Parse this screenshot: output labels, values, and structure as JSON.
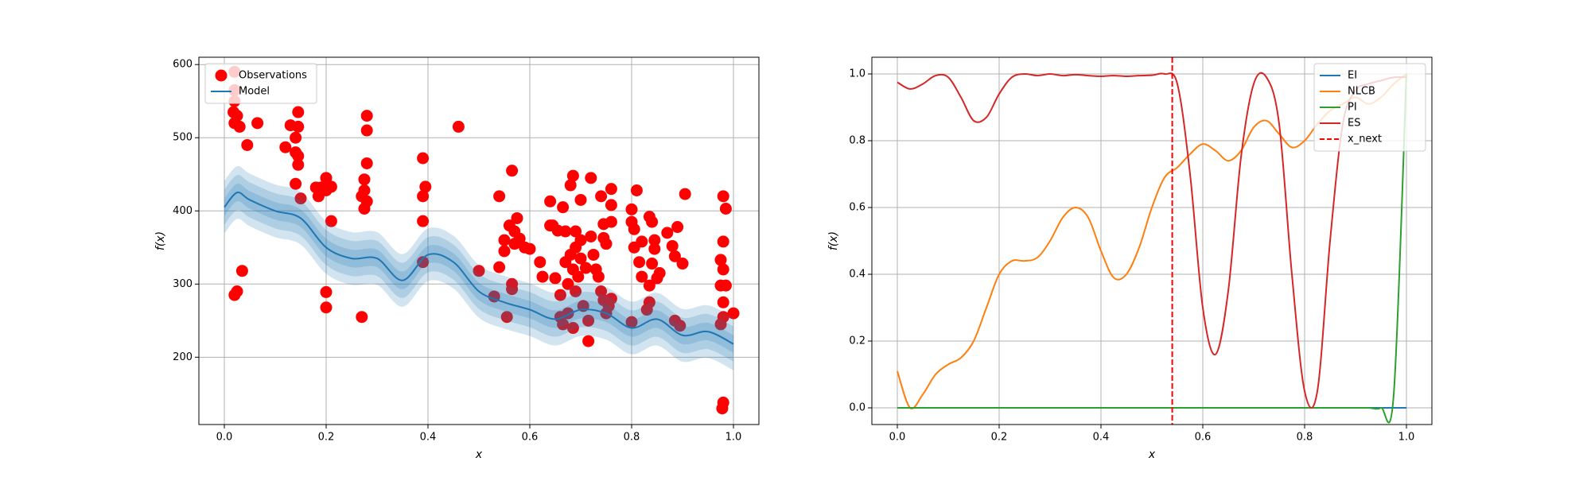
{
  "chart_data": [
    {
      "type": "scatter",
      "xlabel": "x",
      "ylabel": "f(x)",
      "xlim": [
        -0.05,
        1.05
      ],
      "ylim": [
        108,
        610
      ],
      "xticks": [
        {
          "value": 0,
          "label": "0.0"
        },
        0.2,
        0.4,
        0.6,
        0.8,
        {
          "value": 1,
          "label": "1.0"
        }
      ],
      "yticks": [
        200,
        300,
        400,
        500,
        600
      ],
      "grid": true,
      "legend": "upper left",
      "series": [
        {
          "name": "Observations",
          "type": "scatter",
          "color": "#ff0000",
          "x": [
            0.02,
            0.02,
            0.02,
            0.018,
            0.02,
            0.03,
            0.025,
            0.02,
            0.025,
            0.035,
            0.045,
            0.065,
            0.12,
            0.13,
            0.14,
            0.14,
            0.145,
            0.145,
            0.145,
            0.145,
            0.14,
            0.15,
            0.18,
            0.185,
            0.19,
            0.2,
            0.2,
            0.21,
            0.21,
            0.2,
            0.2,
            0.27,
            0.27,
            0.275,
            0.275,
            0.28,
            0.275,
            0.28,
            0.28,
            0.28,
            0.39,
            0.395,
            0.39,
            0.39,
            0.39,
            0.46,
            0.5,
            0.53,
            0.54,
            0.54,
            0.55,
            0.55,
            0.555,
            0.56,
            0.565,
            0.565,
            0.565,
            0.57,
            0.57,
            0.575,
            0.58,
            0.59,
            0.6,
            0.62,
            0.625,
            0.64,
            0.64,
            0.645,
            0.65,
            0.655,
            0.66,
            0.66,
            0.665,
            0.665,
            0.67,
            0.67,
            0.675,
            0.675,
            0.68,
            0.68,
            0.685,
            0.685,
            0.685,
            0.69,
            0.69,
            0.69,
            0.695,
            0.7,
            0.7,
            0.7,
            0.705,
            0.71,
            0.715,
            0.715,
            0.72,
            0.72,
            0.725,
            0.73,
            0.735,
            0.74,
            0.74,
            0.745,
            0.745,
            0.75,
            0.745,
            0.75,
            0.76,
            0.76,
            0.76,
            0.755,
            0.76,
            0.8,
            0.8,
            0.805,
            0.805,
            0.8,
            0.81,
            0.815,
            0.82,
            0.82,
            0.83,
            0.835,
            0.835,
            0.835,
            0.84,
            0.84,
            0.845,
            0.845,
            0.85,
            0.855,
            0.87,
            0.88,
            0.885,
            0.885,
            0.89,
            0.895,
            0.9,
            0.905,
            0.98,
            0.985,
            0.98,
            0.975,
            0.98,
            0.975,
            0.985,
            0.98,
            0.98,
            0.975,
            1.0,
            0.98,
            0.978
          ],
          "values": [
            590,
            565,
            550,
            535,
            520,
            515,
            530,
            285,
            290,
            318,
            490,
            520,
            487,
            517,
            500,
            480,
            515,
            535,
            475,
            463,
            437,
            417,
            432,
            420,
            432,
            445,
            428,
            433,
            386,
            289,
            268,
            255,
            420,
            443,
            428,
            413,
            403,
            465,
            510,
            530,
            472,
            433,
            420,
            386,
            330,
            515,
            318,
            283,
            323,
            420,
            360,
            345,
            255,
            380,
            455,
            300,
            293,
            372,
            355,
            390,
            362,
            350,
            348,
            330,
            310,
            413,
            380,
            380,
            308,
            373,
            285,
            255,
            405,
            245,
            330,
            372,
            300,
            260,
            435,
            340,
            448,
            320,
            240,
            372,
            350,
            290,
            310,
            415,
            360,
            335,
            270,
            322,
            250,
            222,
            445,
            365,
            340,
            320,
            310,
            420,
            290,
            382,
            363,
            355,
            278,
            260,
            430,
            408,
            385,
            270,
            280,
            402,
            385,
            375,
            350,
            248,
            428,
            330,
            358,
            310,
            265,
            298,
            275,
            392,
            385,
            328,
            360,
            348,
            308,
            315,
            370,
            352,
            338,
            250,
            378,
            243,
            328,
            423,
            420,
            403,
            358,
            333,
            320,
            298,
            298,
            275,
            255,
            245,
            260,
            138,
            130
          ]
        },
        {
          "name": "Model",
          "type": "line",
          "color": "#1f77b4",
          "x": [
            0,
            0.025,
            0.05,
            0.1,
            0.15,
            0.2,
            0.25,
            0.3,
            0.35,
            0.4,
            0.45,
            0.5,
            0.55,
            0.6,
            0.65,
            0.7,
            0.75,
            0.8,
            0.85,
            0.9,
            0.95,
            1.0
          ],
          "values": [
            405,
            425,
            415,
            400,
            390,
            350,
            335,
            335,
            305,
            340,
            330,
            290,
            275,
            265,
            252,
            265,
            260,
            240,
            252,
            230,
            235,
            218
          ],
          "bands": [
            {
              "lower": [
                369,
                389,
                379,
                364,
                354,
                314,
                299,
                299,
                269,
                304,
                294,
                254,
                239,
                229,
                216,
                229,
                224,
                204,
                216,
                194,
                199,
                182
              ],
              "upper": [
                441,
                461,
                451,
                436,
                426,
                386,
                371,
                371,
                341,
                376,
                366,
                326,
                311,
                301,
                288,
                301,
                296,
                276,
                288,
                266,
                271,
                254
              ]
            },
            {
              "lower": [
                381,
                401,
                391,
                376,
                366,
                326,
                311,
                311,
                281,
                316,
                306,
                266,
                251,
                241,
                228,
                241,
                236,
                216,
                228,
                206,
                211,
                194
              ],
              "upper": [
                429,
                449,
                439,
                424,
                414,
                374,
                359,
                359,
                329,
                364,
                354,
                314,
                299,
                289,
                276,
                289,
                284,
                264,
                276,
                254,
                259,
                242
              ]
            },
            {
              "lower": [
                393,
                413,
                403,
                388,
                378,
                338,
                323,
                323,
                293,
                328,
                318,
                278,
                263,
                253,
                240,
                253,
                248,
                228,
                240,
                218,
                223,
                206
              ],
              "upper": [
                417,
                437,
                427,
                412,
                402,
                362,
                347,
                347,
                317,
                352,
                342,
                302,
                287,
                277,
                264,
                277,
                272,
                252,
                264,
                242,
                247,
                230
              ]
            }
          ]
        }
      ]
    },
    {
      "type": "line",
      "xlabel": "x",
      "ylabel": "f(x)",
      "xlim": [
        -0.05,
        1.05
      ],
      "ylim": [
        -0.05,
        1.05
      ],
      "xticks": [
        {
          "value": 0,
          "label": "0.0"
        },
        0.2,
        0.4,
        0.6,
        0.8,
        {
          "value": 1,
          "label": "1.0"
        }
      ],
      "yticks": [
        {
          "value": 0,
          "label": "0.0"
        },
        0.2,
        0.4,
        0.6,
        0.8,
        {
          "value": 1,
          "label": "1.0"
        }
      ],
      "grid": true,
      "legend": "upper right",
      "x": [
        0,
        0.025,
        0.05,
        0.075,
        0.1,
        0.125,
        0.15,
        0.175,
        0.2,
        0.225,
        0.25,
        0.275,
        0.3,
        0.325,
        0.35,
        0.375,
        0.4,
        0.425,
        0.45,
        0.475,
        0.5,
        0.525,
        0.55,
        0.575,
        0.6,
        0.625,
        0.65,
        0.675,
        0.7,
        0.725,
        0.75,
        0.775,
        0.8,
        0.825,
        0.85,
        0.875,
        0.9,
        0.925,
        0.95,
        0.975,
        1.0
      ],
      "series": [
        {
          "name": "EI",
          "color": "#1f77b4",
          "values": [
            0,
            0,
            0,
            0,
            0,
            0,
            0,
            0,
            0,
            0,
            0,
            0,
            0,
            0,
            0,
            0,
            0,
            0,
            0,
            0,
            0,
            0,
            0,
            0,
            0,
            0,
            0,
            0,
            0,
            0,
            0,
            0,
            0,
            0,
            0,
            0,
            0,
            0,
            0,
            0,
            0
          ]
        },
        {
          "name": "NLCB",
          "color": "#ff7f0e",
          "values": [
            0.11,
            0.0,
            0.04,
            0.1,
            0.13,
            0.15,
            0.2,
            0.3,
            0.4,
            0.44,
            0.44,
            0.45,
            0.5,
            0.57,
            0.6,
            0.57,
            0.47,
            0.39,
            0.4,
            0.48,
            0.6,
            0.69,
            0.72,
            0.76,
            0.79,
            0.77,
            0.74,
            0.77,
            0.84,
            0.86,
            0.82,
            0.78,
            0.8,
            0.85,
            0.89,
            0.91,
            0.93,
            0.91,
            0.93,
            0.97,
            1.0
          ]
        },
        {
          "name": "PI",
          "color": "#2ca02c",
          "values": [
            0,
            0,
            0,
            0,
            0,
            0,
            0,
            0,
            0,
            0,
            0,
            0,
            0,
            0,
            0,
            0,
            0,
            0,
            0,
            0,
            0,
            0,
            0,
            0,
            0,
            0,
            0,
            0,
            0,
            0,
            0,
            0,
            0,
            0,
            0,
            0,
            0,
            0,
            0,
            0.04,
            1.0
          ]
        },
        {
          "name": "ES",
          "color": "#d62728",
          "values": [
            0.975,
            0.955,
            0.97,
            0.995,
            0.99,
            0.93,
            0.86,
            0.87,
            0.94,
            0.99,
            1.0,
            0.995,
            1.0,
            0.995,
            0.998,
            0.995,
            0.993,
            0.995,
            0.993,
            0.995,
            0.996,
            1.0,
            0.97,
            0.7,
            0.3,
            0.16,
            0.35,
            0.75,
            0.97,
            0.99,
            0.85,
            0.4,
            0.05,
            0.05,
            0.5,
            0.85,
            0.95,
            0.97,
            0.98,
            0.99,
            0.99
          ]
        }
      ],
      "vlines": [
        {
          "name": "x_next",
          "value": 0.54,
          "color": "#ff0000",
          "style": "dashed"
        }
      ]
    }
  ]
}
